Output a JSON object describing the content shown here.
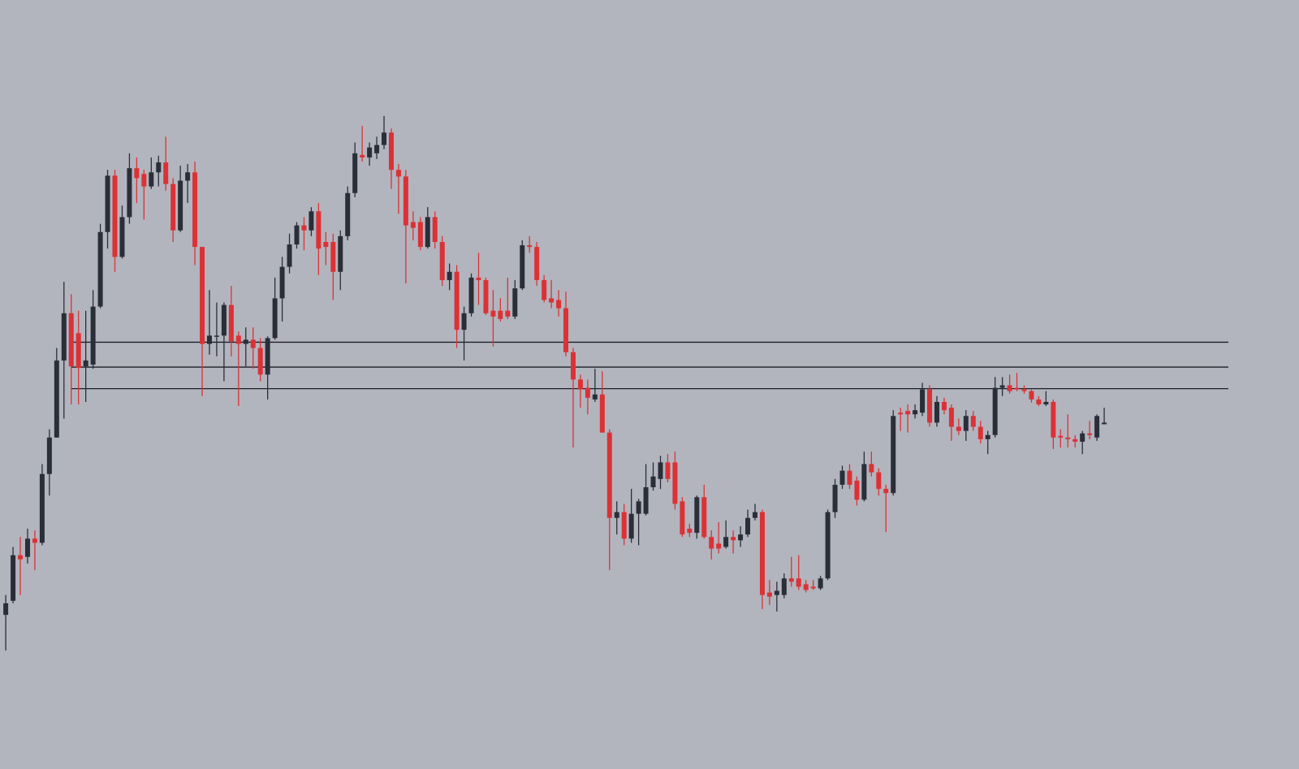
{
  "chart_data": {
    "type": "candlestick",
    "ylim": [
      0,
      928
    ],
    "up_color": "#2a2e39",
    "down_color": "#dc3135",
    "level_color": "#1c1f26",
    "levels": [
      515,
      485,
      459
    ],
    "open": [
      186,
      203,
      258,
      256,
      278,
      273,
      356,
      400,
      493,
      550,
      526,
      486,
      488,
      558,
      648,
      716,
      618,
      666,
      725,
      718,
      703,
      720,
      732,
      706,
      650,
      710,
      720,
      630,
      513,
      522,
      523,
      560,
      523,
      513,
      518,
      508,
      476,
      520,
      568,
      606,
      633,
      656,
      650,
      673,
      636,
      636,
      600,
      643,
      695,
      741,
      738,
      743,
      753,
      768,
      723,
      715,
      660,
      660,
      630,
      666,
      636,
      590,
      600,
      530,
      550,
      593,
      590,
      553,
      553,
      553,
      546,
      580,
      632,
      630,
      590,
      568,
      566,
      556,
      503,
      470,
      460,
      446,
      452,
      406,
      303,
      310,
      278,
      308,
      308,
      340,
      350,
      370,
      370,
      323,
      290,
      285,
      328,
      280,
      272,
      268,
      280,
      276,
      283,
      303,
      310,
      213,
      210,
      210,
      230,
      230,
      223,
      220,
      218,
      230,
      310,
      343,
      360,
      348,
      325,
      368,
      358,
      338,
      333,
      430,
      432,
      428,
      430,
      458,
      418,
      443,
      436,
      413,
      408,
      426,
      413,
      398,
      403,
      460,
      463,
      460,
      458,
      456,
      446,
      440,
      443,
      402,
      400,
      398,
      395,
      405,
      400,
      416
    ],
    "high": [
      210,
      268,
      280,
      290,
      288,
      368,
      410,
      508,
      588,
      573,
      553,
      553,
      578,
      658,
      723,
      723,
      680,
      743,
      738,
      723,
      738,
      740,
      763,
      713,
      728,
      730,
      733,
      630,
      578,
      563,
      563,
      583,
      528,
      533,
      533,
      520,
      522,
      593,
      618,
      646,
      660,
      666,
      678,
      683,
      648,
      646,
      650,
      703,
      756,
      776,
      756,
      763,
      788,
      773,
      730,
      723,
      673,
      666,
      678,
      673,
      643,
      610,
      608,
      558,
      598,
      623,
      593,
      578,
      568,
      593,
      590,
      638,
      643,
      636,
      596,
      590,
      578,
      576,
      508,
      476,
      470,
      483,
      480,
      410,
      323,
      320,
      338,
      326,
      368,
      370,
      378,
      380,
      383,
      328,
      296,
      330,
      343,
      288,
      298,
      300,
      288,
      293,
      313,
      320,
      313,
      228,
      226,
      236,
      256,
      258,
      228,
      228,
      233,
      313,
      350,
      366,
      368,
      353,
      383,
      383,
      363,
      343,
      433,
      436,
      440,
      440,
      466,
      463,
      450,
      448,
      440,
      423,
      433,
      432,
      420,
      408,
      473,
      473,
      476,
      478,
      463,
      458,
      450,
      456,
      446,
      410,
      428,
      403,
      408,
      420,
      428,
      436
    ],
    "low": [
      143,
      200,
      210,
      248,
      240,
      270,
      330,
      400,
      423,
      440,
      440,
      443,
      483,
      556,
      628,
      600,
      616,
      658,
      683,
      663,
      700,
      703,
      698,
      636,
      648,
      683,
      608,
      450,
      500,
      498,
      468,
      498,
      438,
      486,
      483,
      468,
      446,
      518,
      540,
      598,
      628,
      626,
      643,
      596,
      608,
      566,
      578,
      638,
      690,
      733,
      728,
      736,
      748,
      700,
      670,
      586,
      638,
      626,
      628,
      628,
      583,
      578,
      508,
      493,
      546,
      560,
      548,
      510,
      540,
      543,
      543,
      578,
      623,
      583,
      563,
      556,
      546,
      498,
      388,
      436,
      428,
      443,
      406,
      240,
      283,
      270,
      273,
      270,
      306,
      336,
      338,
      346,
      313,
      280,
      280,
      278,
      278,
      253,
      260,
      266,
      260,
      268,
      280,
      300,
      193,
      198,
      190,
      206,
      220,
      216,
      213,
      216,
      216,
      228,
      303,
      338,
      338,
      318,
      323,
      353,
      330,
      286,
      330,
      408,
      406,
      423,
      426,
      413,
      413,
      428,
      396,
      403,
      396,
      408,
      393,
      380,
      400,
      450,
      453,
      456,
      453,
      442,
      438,
      438,
      386,
      388,
      388,
      388,
      380,
      398,
      396,
      416
    ],
    "close": [
      200,
      258,
      253,
      278,
      273,
      356,
      400,
      493,
      550,
      486,
      484,
      493,
      558,
      648,
      716,
      618,
      666,
      725,
      713,
      703,
      720,
      732,
      706,
      650,
      710,
      720,
      630,
      513,
      523,
      523,
      560,
      516,
      513,
      518,
      508,
      476,
      520,
      568,
      606,
      633,
      656,
      650,
      673,
      628,
      630,
      600,
      643,
      695,
      743,
      738,
      750,
      753,
      768,
      723,
      715,
      656,
      653,
      630,
      666,
      636,
      590,
      600,
      530,
      550,
      593,
      590,
      550,
      546,
      543,
      546,
      580,
      632,
      630,
      590,
      566,
      563,
      556,
      503,
      470,
      458,
      448,
      452,
      406,
      303,
      310,
      278,
      308,
      323,
      340,
      353,
      370,
      350,
      320,
      283,
      285,
      328,
      280,
      266,
      266,
      280,
      276,
      283,
      303,
      310,
      210,
      208,
      215,
      230,
      226,
      220,
      216,
      218,
      230,
      310,
      343,
      360,
      343,
      325,
      368,
      358,
      338,
      333,
      426,
      428,
      428,
      433,
      458,
      418,
      443,
      433,
      413,
      408,
      426,
      413,
      398,
      403,
      460,
      463,
      456,
      458,
      456,
      446,
      440,
      443,
      400,
      400,
      398,
      395,
      405,
      403,
      426,
      418
    ]
  }
}
